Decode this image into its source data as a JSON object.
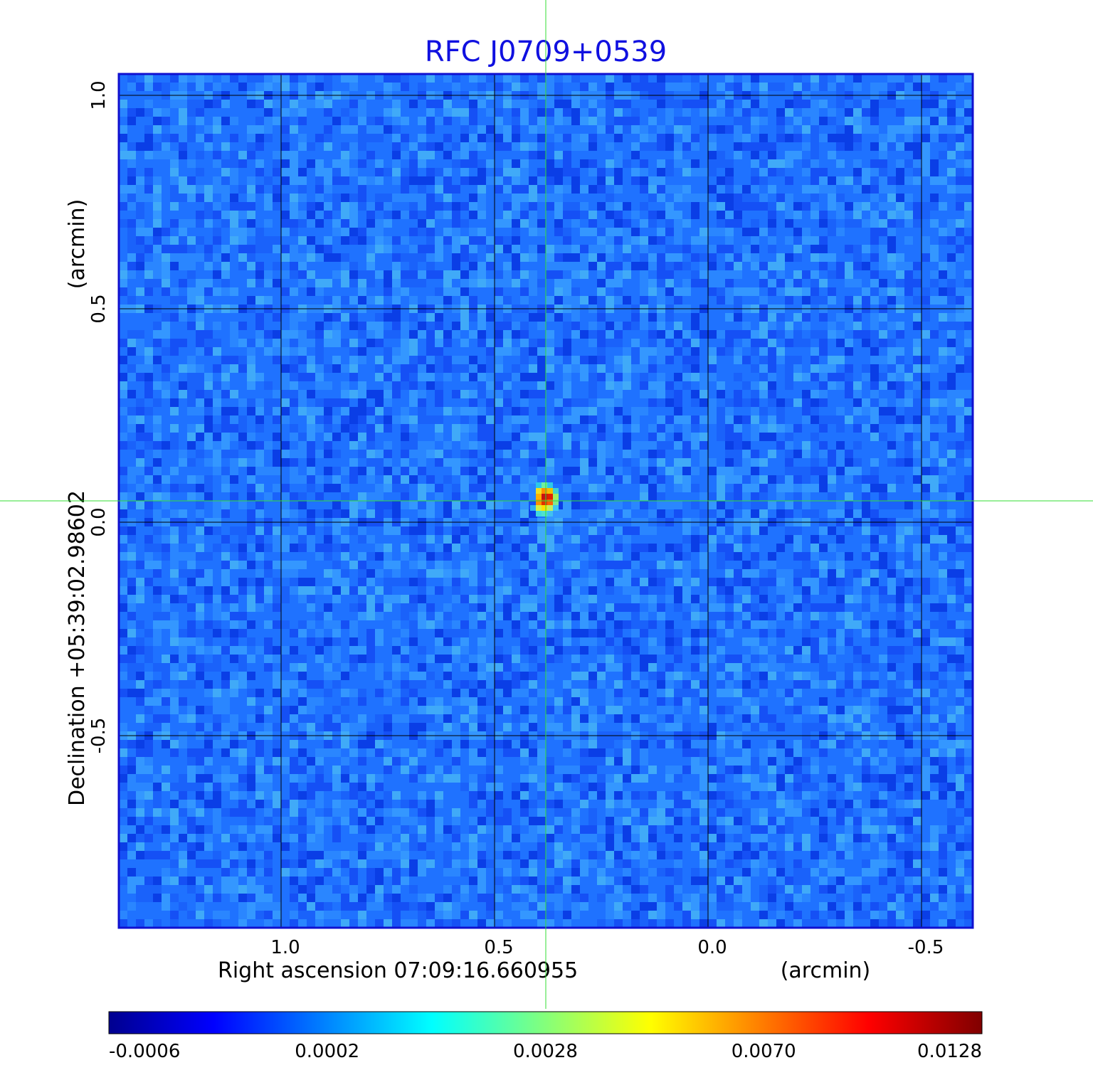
{
  "chart_data": {
    "type": "heatmap",
    "title": "RFC J0709+0539",
    "xaxis": {
      "label": "Right ascension  07:09:16.660955",
      "unit": "(arcmin)",
      "ticks": [
        1.0,
        0.5,
        0.0,
        -0.5
      ],
      "tick_labels": [
        "1.0",
        "0.5",
        "0.0",
        "-0.5"
      ],
      "range": [
        1.38,
        -0.62
      ]
    },
    "yaxis": {
      "label": "Declination  +05:39:02.98602",
      "unit": "(arcmin)",
      "ticks": [
        1.0,
        0.5,
        0.0,
        -0.5
      ],
      "tick_labels": [
        "1.0",
        "0.5",
        "0.0",
        "-0.5"
      ],
      "range": [
        -0.95,
        1.05
      ]
    },
    "grid": true,
    "crosshair": {
      "x": 0.38,
      "y": 0.05,
      "color": "#33dd33"
    },
    "source": {
      "x": 0.38,
      "y": 0.05,
      "peak": 0.0128
    },
    "colorbar": {
      "tick_labels": [
        "-0.0006",
        "0.0002",
        "0.0028",
        "0.0070",
        "0.0128"
      ],
      "colormap": [
        "#00008f",
        "#0000ff",
        "#00ffff",
        "#ffff00",
        "#ff0000",
        "#800000"
      ]
    },
    "background_color": "#1f72ff",
    "frame_color": "#1010d0"
  }
}
